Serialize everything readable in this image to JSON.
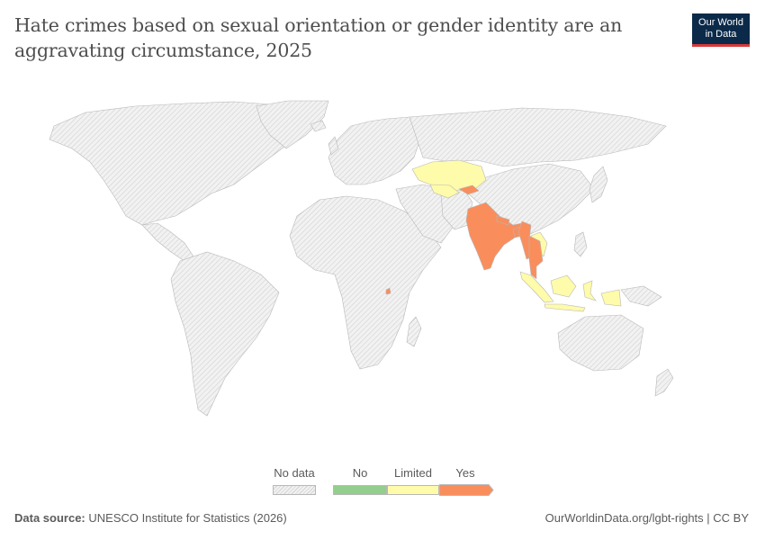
{
  "header": {
    "title": "Hate crimes based on sexual orientation or gender identity are an aggravating circumstance, 2025",
    "logo_line1": "Our World",
    "logo_line2": "in Data"
  },
  "legend": {
    "no_data": "No data",
    "categories": [
      {
        "label": "No",
        "color": "#93cf8c"
      },
      {
        "label": "Limited",
        "color": "#fefbaa"
      },
      {
        "label": "Yes",
        "color": "#f98e5c"
      }
    ]
  },
  "colors": {
    "no_data_fill": "#f2f2f2",
    "no_data_hatch": "#d3d3d3",
    "border": "#b8b8b8"
  },
  "chart_data": {
    "type": "map",
    "entities": [
      {
        "name": "India",
        "value": "Yes"
      },
      {
        "name": "Nepal",
        "value": "Yes"
      },
      {
        "name": "Thailand",
        "value": "Yes"
      },
      {
        "name": "Myanmar",
        "value": "Yes"
      },
      {
        "name": "Bangladesh",
        "value": "Yes"
      },
      {
        "name": "Kyrgyzstan",
        "value": "Yes"
      },
      {
        "name": "Rwanda",
        "value": "Yes"
      },
      {
        "name": "Kazakhstan",
        "value": "Limited"
      },
      {
        "name": "Uzbekistan",
        "value": "Limited"
      },
      {
        "name": "Laos",
        "value": "Limited"
      },
      {
        "name": "Indonesia",
        "value": "Limited"
      },
      {
        "name": "Timor-Leste",
        "value": "Limited"
      }
    ]
  },
  "footer": {
    "source_label": "Data source:",
    "source_text": "UNESCO Institute for Statistics (2026)",
    "url": "OurWorldinData.org/lgbt-rights | CC BY"
  }
}
